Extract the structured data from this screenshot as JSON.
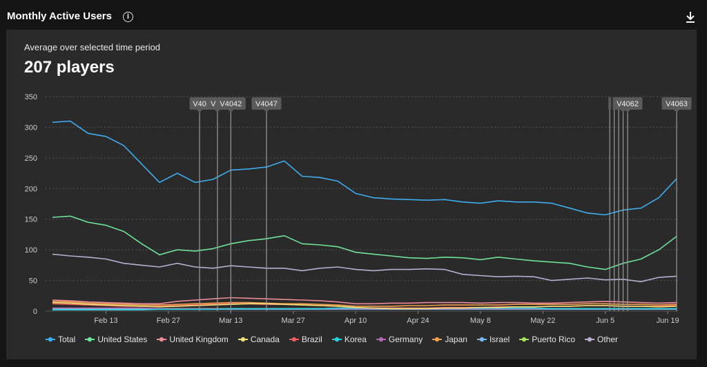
{
  "header": {
    "title": "Monthly Active Users",
    "info_icon": "info-icon",
    "download_icon": "download-icon"
  },
  "summary": {
    "subtitle": "Average over selected time period",
    "value": "207 players"
  },
  "chart_data": {
    "type": "line",
    "ylim": [
      0,
      350
    ],
    "yticks": [
      0,
      50,
      100,
      150,
      200,
      250,
      300,
      350
    ],
    "xticks": [
      "Feb 13",
      "Feb 27",
      "Mar 13",
      "Mar 27",
      "Apr 10",
      "Apr 24",
      "May 8",
      "May 22",
      "Jun 5",
      "Jun 19"
    ],
    "grid": true,
    "legend_position": "bottom",
    "x": [
      "Feb 1",
      "Feb 5",
      "Feb 9",
      "Feb 13",
      "Feb 17",
      "Feb 21",
      "Feb 25",
      "Mar 1",
      "Mar 5",
      "Mar 9",
      "Mar 13",
      "Mar 17",
      "Mar 21",
      "Mar 25",
      "Mar 29",
      "Apr 2",
      "Apr 6",
      "Apr 10",
      "Apr 14",
      "Apr 18",
      "Apr 22",
      "Apr 26",
      "Apr 30",
      "May 4",
      "May 8",
      "May 12",
      "May 16",
      "May 20",
      "May 24",
      "May 28",
      "Jun 1",
      "Jun 5",
      "Jun 9",
      "Jun 13",
      "Jun 17",
      "Jun 21"
    ],
    "series": [
      {
        "name": "Total",
        "color": "#3eaef0",
        "values": [
          308,
          310,
          290,
          285,
          270,
          240,
          210,
          225,
          210,
          215,
          230,
          232,
          235,
          245,
          220,
          218,
          212,
          192,
          185,
          183,
          182,
          181,
          182,
          178,
          176,
          180,
          178,
          178,
          176,
          168,
          160,
          157,
          165,
          168,
          185,
          216
        ]
      },
      {
        "name": "United States",
        "color": "#6ee39a",
        "values": [
          153,
          155,
          145,
          140,
          130,
          110,
          92,
          100,
          98,
          102,
          110,
          115,
          118,
          123,
          110,
          108,
          105,
          96,
          93,
          90,
          87,
          86,
          88,
          87,
          84,
          88,
          85,
          82,
          80,
          78,
          72,
          68,
          78,
          85,
          100,
          122
        ]
      },
      {
        "name": "United Kingdom",
        "color": "#f08b9a",
        "values": [
          18,
          17,
          15,
          14,
          13,
          12,
          12,
          16,
          18,
          20,
          22,
          21,
          20,
          19,
          18,
          17,
          15,
          12,
          12,
          13,
          13,
          14,
          14,
          14,
          13,
          14,
          14,
          13,
          13,
          14,
          15,
          16,
          15,
          14,
          13,
          14
        ]
      },
      {
        "name": "Canada",
        "color": "#f3e27a",
        "values": [
          14,
          13,
          11,
          10,
          9,
          8,
          7,
          8,
          9,
          10,
          11,
          12,
          12,
          11,
          10,
          9,
          8,
          6,
          5,
          4,
          4,
          4,
          5,
          5,
          6,
          6,
          7,
          7,
          8,
          8,
          9,
          9,
          8,
          8,
          7,
          8
        ]
      },
      {
        "name": "Brazil",
        "color": "#f05d5d",
        "values": [
          12,
          11,
          10,
          9,
          8,
          8,
          8,
          9,
          10,
          11,
          12,
          12,
          11,
          11,
          10,
          9,
          8,
          6,
          5,
          5,
          5,
          5,
          6,
          6,
          6,
          7,
          7,
          7,
          8,
          8,
          9,
          9,
          8,
          8,
          8,
          9
        ]
      },
      {
        "name": "Korea",
        "color": "#26d4e0",
        "values": [
          2,
          2,
          2,
          2,
          2,
          2,
          3,
          3,
          3,
          3,
          4,
          4,
          4,
          4,
          4,
          4,
          5,
          5,
          5,
          5,
          5,
          5,
          5,
          5,
          5,
          5,
          5,
          5,
          4,
          4,
          4,
          4,
          4,
          4,
          4,
          4
        ]
      },
      {
        "name": "Germany",
        "color": "#b36bb3",
        "values": [
          5,
          5,
          5,
          5,
          5,
          5,
          4,
          4,
          4,
          4,
          4,
          4,
          4,
          4,
          4,
          4,
          4,
          4,
          4,
          4,
          4,
          4,
          4,
          4,
          4,
          4,
          4,
          4,
          4,
          4,
          4,
          4,
          4,
          4,
          4,
          4
        ]
      },
      {
        "name": "Japan",
        "color": "#f0a050",
        "values": [
          16,
          15,
          13,
          12,
          11,
          10,
          10,
          11,
          12,
          13,
          14,
          14,
          13,
          12,
          12,
          11,
          10,
          8,
          8,
          8,
          9,
          9,
          10,
          10,
          10,
          10,
          11,
          11,
          11,
          11,
          12,
          12,
          11,
          11,
          10,
          11
        ]
      },
      {
        "name": "Israel",
        "color": "#7ab8f0",
        "values": [
          3,
          3,
          3,
          3,
          3,
          3,
          3,
          3,
          3,
          3,
          3,
          3,
          3,
          3,
          3,
          3,
          3,
          3,
          3,
          3,
          3,
          3,
          3,
          3,
          3,
          3,
          3,
          3,
          3,
          3,
          3,
          3,
          3,
          3,
          3,
          3
        ]
      },
      {
        "name": "Puerto Rico",
        "color": "#a8e060",
        "values": [
          4,
          4,
          4,
          4,
          4,
          4,
          4,
          4,
          4,
          4,
          4,
          4,
          4,
          4,
          4,
          4,
          4,
          4,
          4,
          4,
          4,
          4,
          4,
          4,
          4,
          4,
          4,
          4,
          4,
          4,
          4,
          4,
          4,
          4,
          4,
          4
        ]
      },
      {
        "name": "Other",
        "color": "#b8b0d0",
        "values": [
          93,
          90,
          88,
          85,
          78,
          75,
          72,
          78,
          72,
          70,
          74,
          72,
          70,
          70,
          66,
          70,
          72,
          68,
          66,
          68,
          68,
          69,
          68,
          60,
          58,
          56,
          57,
          56,
          50,
          52,
          54,
          51,
          52,
          48,
          55,
          57
        ]
      }
    ],
    "annotations": [
      {
        "label": "V40",
        "x": "Mar 6"
      },
      {
        "label": "V40",
        "x": "Mar 10"
      },
      {
        "label": "V4042",
        "x": "Mar 13"
      },
      {
        "label": "V4047",
        "x": "Mar 21"
      },
      {
        "label": "",
        "x": "Jun 6"
      },
      {
        "label": "",
        "x": "Jun 7"
      },
      {
        "label": "",
        "x": "Jun 8"
      },
      {
        "label": "V",
        "x": "Jun 9"
      },
      {
        "label": "V4062",
        "x": "Jun 10"
      },
      {
        "label": "V4063",
        "x": "Jun 21"
      }
    ]
  }
}
